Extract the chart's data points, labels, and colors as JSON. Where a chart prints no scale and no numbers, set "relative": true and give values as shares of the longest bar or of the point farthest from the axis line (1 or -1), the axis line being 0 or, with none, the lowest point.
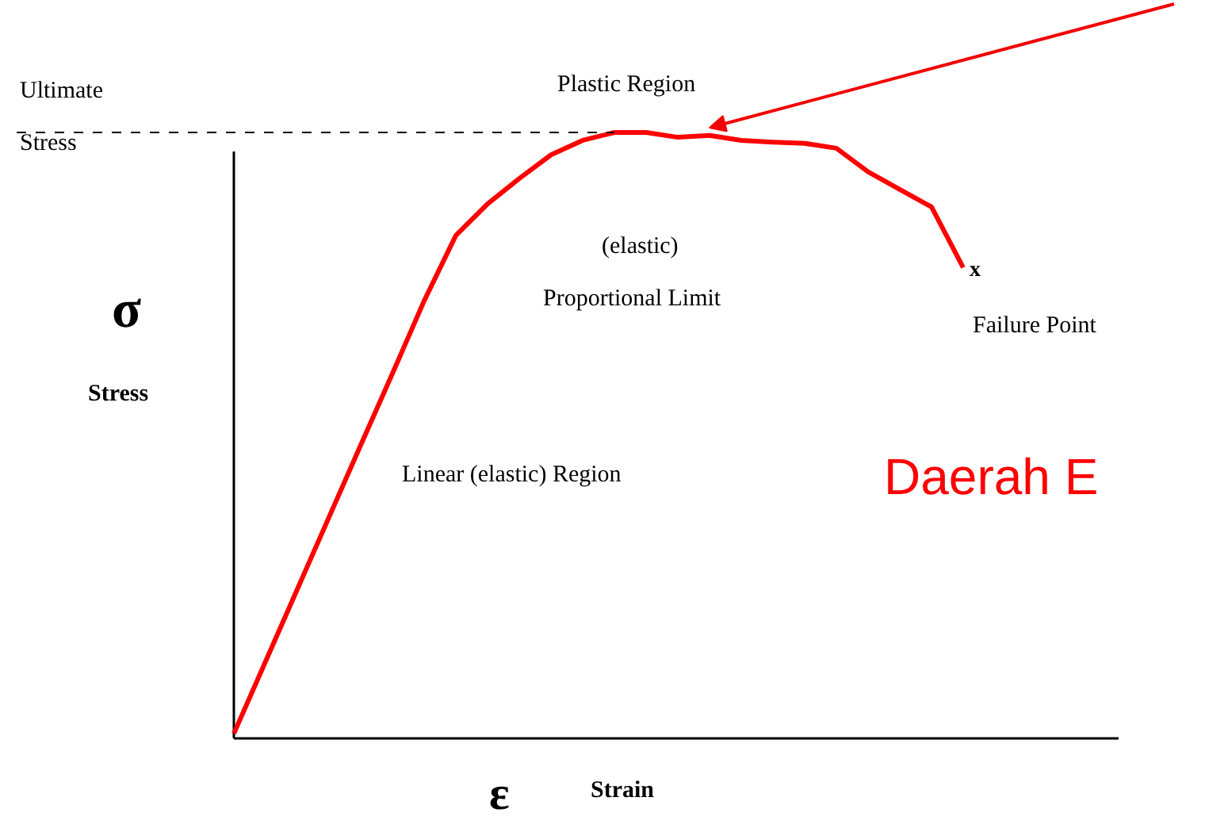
{
  "chart_data": {
    "type": "line",
    "relative": true,
    "xlabel": "Strain",
    "ylabel": "Stress",
    "categories": [
      null,
      null,
      null,
      null,
      null,
      null,
      null,
      null,
      null,
      null,
      null,
      null,
      null,
      null,
      null,
      null,
      null,
      null,
      null,
      null,
      null,
      null,
      null,
      null
    ],
    "series": [
      {
        "color": "#ff0000",
        "values": [
          0.008,
          0.127,
          0.246,
          0.365,
          0.484,
          0.602,
          0.722,
          0.83,
          0.882,
          0.924,
          0.963,
          0.987,
          1,
          1,
          0.992,
          0.995,
          0.987,
          0.984,
          0.982,
          0.974,
          0.935,
          0.906,
          0.877,
          0.777
        ]
      }
    ],
    "ref_lines": [
      {
        "axis": "y",
        "value": 1,
        "label": "Ultimate Stress",
        "line_style": "dashed",
        "color": "#000000"
      }
    ],
    "annotations": [
      "σ",
      "ε",
      "(elastic)",
      "Proportional Limit",
      "x",
      "Failure Point",
      "Linear (elastic) Region",
      "Daerah E",
      "Plastic Region"
    ],
    "grid": false,
    "marker": "none",
    "line_style": "solid"
  }
}
